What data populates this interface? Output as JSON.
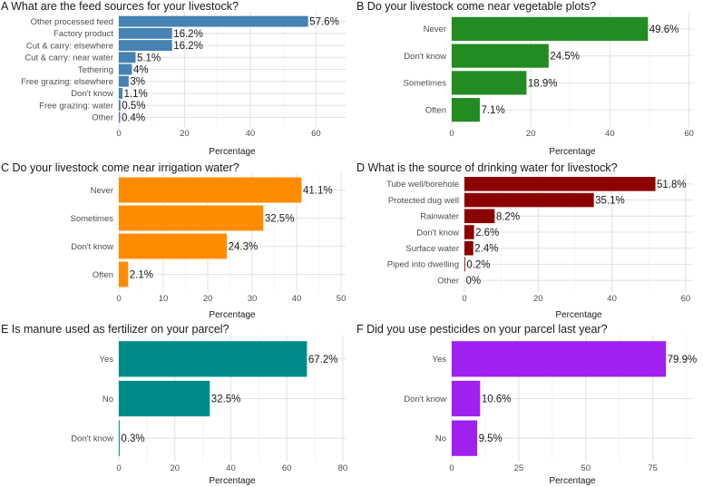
{
  "chart_data": [
    {
      "id": "A",
      "type": "bar",
      "orientation": "horizontal",
      "title": "A What are the feed sources for your livestock?",
      "xlabel": "Percentage",
      "ylabel": "",
      "color": "#4682B4",
      "categories": [
        "Other processed feed",
        "Factory product",
        "Cut & carry: elsewhere",
        "Cut & carry: near water",
        "Tethering",
        "Free grazing: elsewhere",
        "Don't know",
        "Free grazing: water",
        "Other"
      ],
      "values": [
        57.6,
        16.2,
        16.2,
        5.1,
        4,
        3,
        1.1,
        0.5,
        0.4
      ],
      "labels": [
        "57.6%",
        "16.2%",
        "16.2%",
        "5.1%",
        "4%",
        "3%",
        "1.1%",
        "0.5%",
        "0.4%"
      ],
      "xticks": [
        0,
        20,
        40,
        60
      ],
      "xlim": [
        0,
        69
      ]
    },
    {
      "id": "B",
      "type": "bar",
      "orientation": "horizontal",
      "title": "B Do your livestock come near vegetable plots?",
      "xlabel": "Percentage",
      "ylabel": "",
      "color": "#228B22",
      "categories": [
        "Never",
        "Don't know",
        "Sometimes",
        "Often"
      ],
      "values": [
        49.6,
        24.5,
        18.9,
        7.1
      ],
      "labels": [
        "49.6%",
        "24.5%",
        "18.9%",
        "7.1%"
      ],
      "xticks": [
        0,
        20,
        40,
        60
      ],
      "xlim": [
        0,
        61
      ]
    },
    {
      "id": "C",
      "type": "bar",
      "orientation": "horizontal",
      "title": "C Do your livestock come near irrigation water?",
      "xlabel": "Percentage",
      "ylabel": "",
      "color": "#FF8C00",
      "categories": [
        "Never",
        "Sometimes",
        "Don't know",
        "Often"
      ],
      "values": [
        41.1,
        32.5,
        24.3,
        2.1
      ],
      "labels": [
        "41.1%",
        "32.5%",
        "24.3%",
        "2.1%"
      ],
      "xticks": [
        0,
        10,
        20,
        30,
        40,
        50
      ],
      "xlim": [
        0,
        51
      ]
    },
    {
      "id": "D",
      "type": "bar",
      "orientation": "horizontal",
      "title": "D What is the source of drinking water for livestock?",
      "xlabel": "Percentage",
      "ylabel": "",
      "color": "#8B0000",
      "categories": [
        "Tube well/borehole",
        "Protected dug well",
        "Rainwater",
        "Don't know",
        "Surface water",
        "Piped into dwelling",
        "Other"
      ],
      "values": [
        51.8,
        35.1,
        8.2,
        2.6,
        2.4,
        0.2,
        0
      ],
      "labels": [
        "51.8%",
        "35.1%",
        "8.2%",
        "2.6%",
        "2.4%",
        "0.2%",
        "0%"
      ],
      "xticks": [
        0,
        20,
        40,
        60
      ],
      "xlim": [
        0,
        62
      ]
    },
    {
      "id": "E",
      "type": "bar",
      "orientation": "horizontal",
      "title": "E Is manure used as fertilizer on your parcel?",
      "xlabel": "Percentage",
      "ylabel": "",
      "color": "#008B8B",
      "categories": [
        "Yes",
        "No",
        "Don't know"
      ],
      "values": [
        67.2,
        32.5,
        0.3
      ],
      "labels": [
        "67.2%",
        "32.5%",
        "0.3%"
      ],
      "xticks": [
        0,
        20,
        40,
        60,
        80
      ],
      "xlim": [
        0,
        81
      ]
    },
    {
      "id": "F",
      "type": "bar",
      "orientation": "horizontal",
      "title": "F Did you use pesticides on your parcel last year?",
      "xlabel": "Percentage",
      "ylabel": "",
      "color": "#A020F0",
      "categories": [
        "Yes",
        "Don't know",
        "No"
      ],
      "values": [
        79.9,
        10.6,
        9.5
      ],
      "labels": [
        "79.9%",
        "10.6%",
        "9.5%"
      ],
      "xticks": [
        0,
        25,
        50,
        75
      ],
      "xlim": [
        0,
        90
      ]
    }
  ]
}
